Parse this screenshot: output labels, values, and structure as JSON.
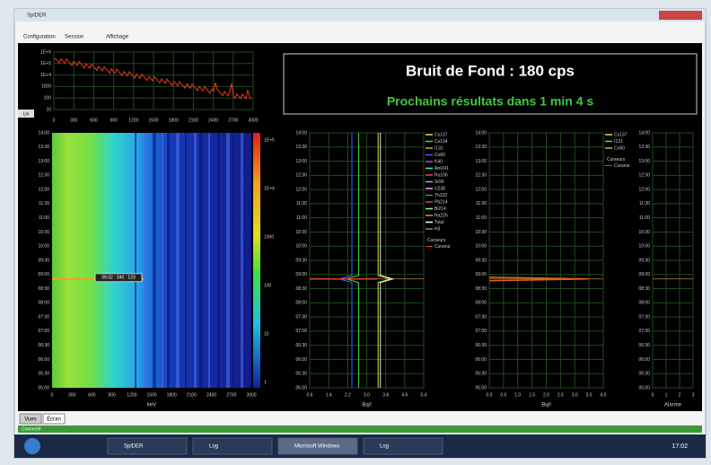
{
  "window": {
    "title": "SpiDER",
    "menu": [
      "Configuration",
      "Session",
      "Affichage"
    ],
    "scale_button": "Lin",
    "tabs": [
      "Vues",
      "Écran"
    ],
    "status": "Connecté"
  },
  "status_panel": {
    "background": "Bruit de Fond : 180 cps",
    "next_results": "Prochains résultats dans 1 min 4 s"
  },
  "spectrum": {
    "xticks": [
      "0",
      "300",
      "600",
      "900",
      "1200",
      "1500",
      "1800",
      "2100",
      "2400",
      "2700",
      "3000"
    ],
    "yticks": [
      "1E+6",
      "1E+5",
      "1E+4",
      "1000",
      "100",
      "10"
    ]
  },
  "waterfall": {
    "x_label": "keV",
    "xticks": [
      "0",
      "300",
      "600",
      "900",
      "1200",
      "1500",
      "1800",
      "2100",
      "2400",
      "2700",
      "3000"
    ],
    "cursor_label": "09:32 : 340 : 123",
    "colorbar_ticks": [
      "1E+5",
      "1E+4",
      "1000",
      "100",
      "10",
      "1"
    ]
  },
  "time_ticks": [
    "14:00",
    "13:30",
    "13:00",
    "12:30",
    "12:00",
    "11:30",
    "11:00",
    "10:30",
    "10:00",
    "09:30",
    "09:00",
    "08:30",
    "08:00",
    "07:30",
    "07:00",
    "06:30",
    "06:00",
    "05:30",
    "05:00"
  ],
  "chart_1": {
    "x_label": "Bq/l",
    "xticks": [
      "0.6",
      "1.4",
      "2.2",
      "3.0",
      "3.8",
      "4.6",
      "5.4"
    ],
    "legend": [
      "Cs137",
      "Cs134",
      "I131",
      "Co60",
      "K40",
      "Am241",
      "Ru106",
      "Sr90",
      "U238",
      "Th232",
      "Pb214",
      "Bi214",
      "Ra226",
      "Total",
      "H3"
    ],
    "cursor_title": "Curseurs",
    "cursor": "Curseur"
  },
  "chart_2": {
    "x_label": "Bq/l",
    "xticks": [
      "0.0",
      "0.5",
      "1.0",
      "1.5",
      "2.0",
      "2.5",
      "3.0",
      "3.5",
      "4.0"
    ],
    "legend": [
      "Cs137",
      "I131",
      "Co60"
    ],
    "cursor_title": "Curseurs",
    "cursor": "Curseur"
  },
  "chart_3": {
    "x_label": "Alarme",
    "xticks": [
      "0",
      "1",
      "2",
      "3"
    ]
  },
  "taskbar": {
    "items": [
      "SpiDER",
      "Log",
      "Microsoft Windows",
      "Log"
    ],
    "clock": "17:02"
  }
}
